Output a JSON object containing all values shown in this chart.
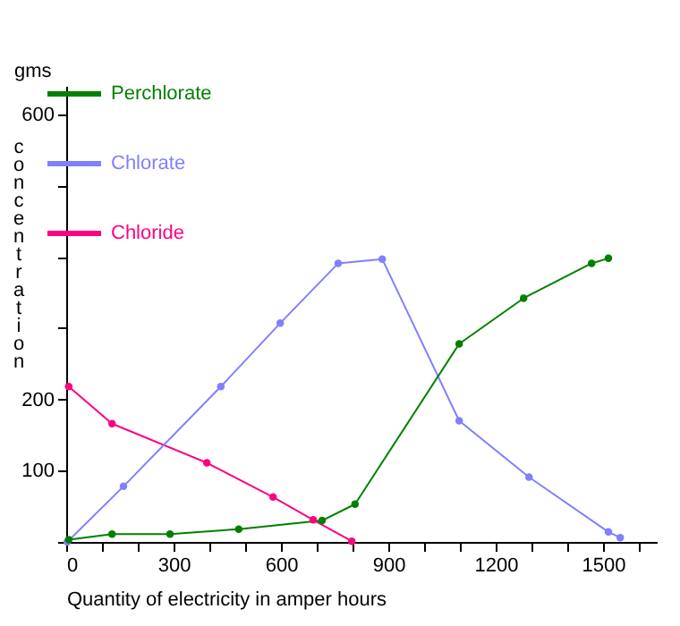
{
  "chart_data": {
    "type": "line",
    "xlabel": "Quantity of electricity in amper hours",
    "ylabel": "concentration",
    "annotations": [
      "gms"
    ],
    "xlim": [
      0,
      1650
    ],
    "ylim": [
      0,
      640
    ],
    "xticks": [
      0,
      {
        "value": 100,
        "label": null
      },
      {
        "value": 200,
        "label": null
      },
      300,
      {
        "value": 400,
        "label": null
      },
      {
        "value": 500,
        "label": null
      },
      600,
      {
        "value": 700,
        "label": null
      },
      {
        "value": 800,
        "label": null
      },
      900,
      {
        "value": 1000,
        "label": null
      },
      {
        "value": 1100,
        "label": null
      },
      1200,
      {
        "value": 1300,
        "label": null
      },
      {
        "value": 1400,
        "label": null
      },
      1500,
      {
        "value": 1600,
        "label": null
      }
    ],
    "yticks": [
      {
        "value": 0,
        "label": null
      },
      100,
      200,
      {
        "value": 300,
        "label": null
      },
      {
        "value": 400,
        "label": null
      },
      {
        "value": 500,
        "label": null
      },
      600
    ],
    "grid": false,
    "legend": "top left",
    "marker": "circle",
    "line_style": "solid",
    "series": [
      {
        "name": "Perchlorate",
        "color": "#008000",
        "x": [
          7,
          128,
          290,
          482,
          715,
          807,
          1098,
          1278,
          1468,
          1515
        ],
        "values": [
          3,
          11,
          11,
          18,
          30,
          53,
          278,
          342,
          391,
          398
        ]
      },
      {
        "name": "Chlorate",
        "color": "#8080ff",
        "x": [
          3,
          160,
          432,
          598,
          760,
          883,
          1098,
          1293,
          1515,
          1548
        ],
        "values": [
          0,
          78,
          218,
          307,
          391,
          397,
          170,
          91,
          14,
          6
        ]
      },
      {
        "name": "Chloride",
        "color": "#ff0080",
        "x": [
          7,
          128,
          393,
          578,
          690,
          798
        ],
        "values": [
          218,
          166,
          111,
          63,
          31,
          1
        ]
      }
    ]
  }
}
